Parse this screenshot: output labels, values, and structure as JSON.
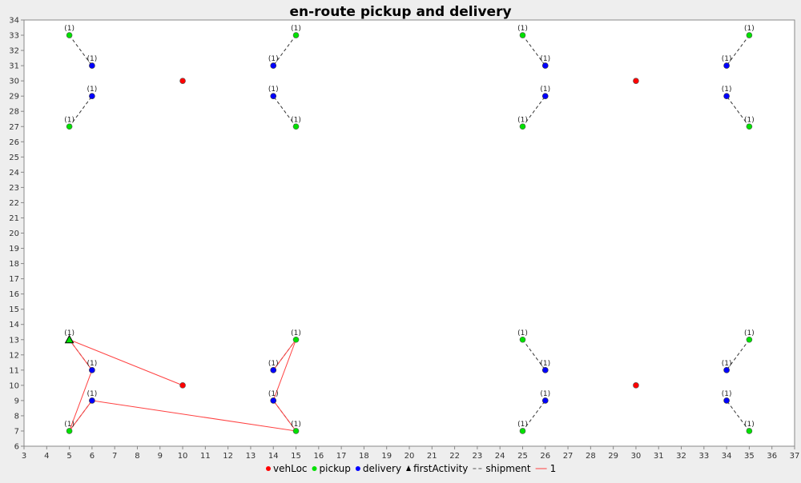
{
  "chart_data": {
    "type": "scatter",
    "title": "en-route pickup and delivery",
    "xlabel": "",
    "ylabel": "",
    "xlim": [
      3,
      37
    ],
    "ylim": [
      6,
      34
    ],
    "x_ticks": [
      3,
      4,
      5,
      6,
      7,
      8,
      9,
      10,
      11,
      12,
      13,
      14,
      15,
      16,
      17,
      18,
      19,
      20,
      21,
      22,
      23,
      24,
      25,
      26,
      27,
      28,
      29,
      30,
      31,
      32,
      33,
      34,
      35,
      36,
      37
    ],
    "y_ticks": [
      6,
      7,
      8,
      9,
      10,
      11,
      12,
      13,
      14,
      15,
      16,
      17,
      18,
      19,
      20,
      21,
      22,
      23,
      24,
      25,
      26,
      27,
      28,
      29,
      30,
      31,
      32,
      33,
      34
    ],
    "grid": false,
    "legend_position": "bottom",
    "colors": {
      "vehLoc": "#ff0000",
      "pickup": "#00e000",
      "delivery": "#0000ff",
      "firstActivity": "#000000",
      "shipment": "#555555",
      "route": "#ff4040",
      "background": "#eeeeee",
      "plot_background": "#ffffff"
    },
    "legend": [
      {
        "label": "vehLoc",
        "marker": "dot",
        "color_key": "vehLoc"
      },
      {
        "label": "pickup",
        "marker": "dot",
        "color_key": "pickup"
      },
      {
        "label": "delivery",
        "marker": "dot",
        "color_key": "delivery"
      },
      {
        "label": "firstActivity",
        "marker": "triangle",
        "color_key": "firstActivity"
      },
      {
        "label": "shipment",
        "marker": "dash",
        "color_key": "shipment"
      },
      {
        "label": "1",
        "marker": "line",
        "color_key": "route"
      }
    ],
    "point_label": "(1)",
    "vehicle_locations": [
      [
        10,
        30
      ],
      [
        30,
        30
      ],
      [
        10,
        10
      ],
      [
        30,
        10
      ]
    ],
    "shipments": [
      {
        "pickup": [
          5,
          33
        ],
        "delivery": [
          6,
          31
        ]
      },
      {
        "pickup": [
          5,
          27
        ],
        "delivery": [
          6,
          29
        ]
      },
      {
        "pickup": [
          15,
          33
        ],
        "delivery": [
          14,
          31
        ]
      },
      {
        "pickup": [
          15,
          27
        ],
        "delivery": [
          14,
          29
        ]
      },
      {
        "pickup": [
          25,
          33
        ],
        "delivery": [
          26,
          31
        ]
      },
      {
        "pickup": [
          25,
          27
        ],
        "delivery": [
          26,
          29
        ]
      },
      {
        "pickup": [
          35,
          33
        ],
        "delivery": [
          34,
          31
        ]
      },
      {
        "pickup": [
          35,
          27
        ],
        "delivery": [
          34,
          29
        ]
      },
      {
        "pickup": [
          5,
          13
        ],
        "delivery": [
          6,
          11
        ]
      },
      {
        "pickup": [
          5,
          7
        ],
        "delivery": [
          6,
          9
        ]
      },
      {
        "pickup": [
          15,
          13
        ],
        "delivery": [
          14,
          11
        ]
      },
      {
        "pickup": [
          15,
          7
        ],
        "delivery": [
          14,
          9
        ]
      },
      {
        "pickup": [
          25,
          13
        ],
        "delivery": [
          26,
          11
        ]
      },
      {
        "pickup": [
          25,
          7
        ],
        "delivery": [
          26,
          9
        ]
      },
      {
        "pickup": [
          35,
          13
        ],
        "delivery": [
          34,
          11
        ]
      },
      {
        "pickup": [
          35,
          7
        ],
        "delivery": [
          34,
          9
        ]
      }
    ],
    "first_activity": [
      5,
      13
    ],
    "routes": [
      {
        "name": "1",
        "points": [
          [
            10,
            10
          ],
          [
            5,
            13
          ],
          [
            6,
            11
          ],
          [
            5,
            7
          ],
          [
            6,
            9
          ],
          [
            15,
            7
          ],
          [
            14,
            9
          ],
          [
            15,
            13
          ],
          [
            14,
            11
          ]
        ]
      }
    ]
  }
}
